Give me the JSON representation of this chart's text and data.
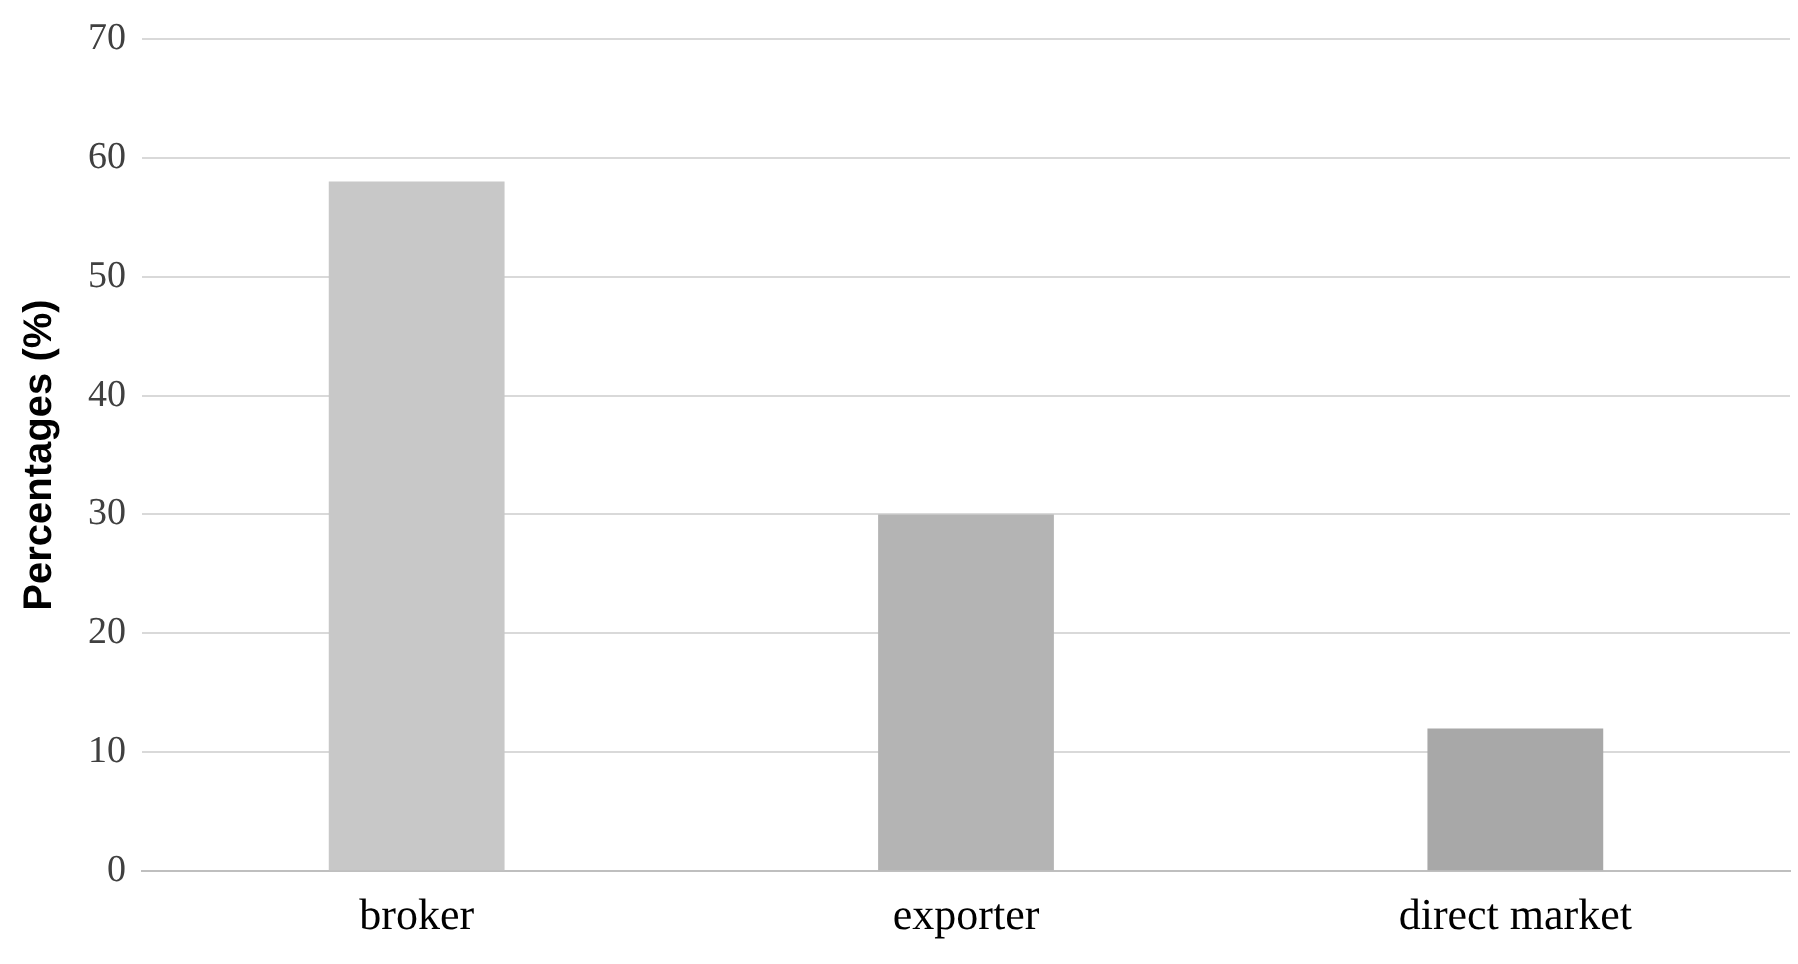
{
  "chart_data": {
    "type": "bar",
    "ylabel": "Percentages (%)",
    "categories": [
      "broker",
      "exporter",
      "direct market"
    ],
    "values": [
      58,
      30,
      12
    ],
    "colors": [
      "#c8c8c8",
      "#b4b4b4",
      "#a8a8a8"
    ],
    "ylim": [
      0,
      70
    ],
    "yticks": [
      0,
      10,
      20,
      30,
      40,
      50,
      60,
      70
    ],
    "grid": "y",
    "legend": false
  }
}
